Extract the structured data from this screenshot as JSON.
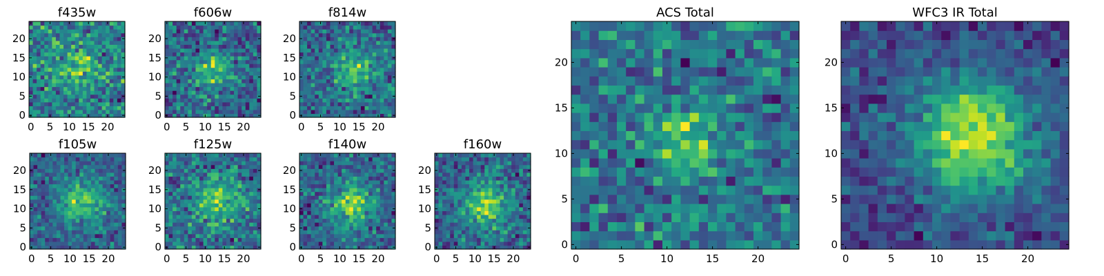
{
  "figure": {
    "background": "#ffffff"
  },
  "chart_data": [
    {
      "type": "heatmap",
      "title": "f435w",
      "xlim": [
        0,
        25
      ],
      "ylim": [
        0,
        25
      ],
      "xticks": [
        0,
        5,
        10,
        15,
        20
      ],
      "yticks": [
        0,
        5,
        10,
        15,
        20
      ],
      "peak": [
        12,
        12
      ],
      "sigma": 3.5,
      "amp": 0.3,
      "noise": 0.55,
      "seed": 11
    },
    {
      "type": "heatmap",
      "title": "f606w",
      "xlim": [
        0,
        25
      ],
      "ylim": [
        0,
        25
      ],
      "xticks": [
        0,
        5,
        10,
        15,
        20
      ],
      "yticks": [
        0,
        5,
        10,
        15,
        20
      ],
      "peak": [
        12,
        12
      ],
      "sigma": 3.5,
      "amp": 0.35,
      "noise": 0.55,
      "seed": 23
    },
    {
      "type": "heatmap",
      "title": "f814w",
      "xlim": [
        0,
        25
      ],
      "ylim": [
        0,
        25
      ],
      "xticks": [
        0,
        5,
        10,
        15,
        20
      ],
      "yticks": [
        0,
        5,
        10,
        15,
        20
      ],
      "peak": [
        14,
        12
      ],
      "sigma": 3.5,
      "amp": 0.4,
      "noise": 0.55,
      "seed": 37
    },
    {
      "type": "heatmap",
      "title": "f105w",
      "xlim": [
        0,
        25
      ],
      "ylim": [
        0,
        25
      ],
      "xticks": [
        0,
        5,
        10,
        15,
        20
      ],
      "yticks": [
        0,
        5,
        10,
        15,
        20
      ],
      "peak": [
        13,
        12
      ],
      "sigma": 4,
      "amp": 0.45,
      "noise": 0.45,
      "seed": 41
    },
    {
      "type": "heatmap",
      "title": "f125w",
      "xlim": [
        0,
        25
      ],
      "ylim": [
        0,
        25
      ],
      "xticks": [
        0,
        5,
        10,
        15,
        20
      ],
      "yticks": [
        0,
        5,
        10,
        15,
        20
      ],
      "peak": [
        13,
        12
      ],
      "sigma": 4,
      "amp": 0.35,
      "noise": 0.5,
      "seed": 53
    },
    {
      "type": "heatmap",
      "title": "f140w",
      "xlim": [
        0,
        25
      ],
      "ylim": [
        0,
        25
      ],
      "xticks": [
        0,
        5,
        10,
        15,
        20
      ],
      "yticks": [
        0,
        5,
        10,
        15,
        20
      ],
      "peak": [
        13,
        11
      ],
      "sigma": 4,
      "amp": 0.45,
      "noise": 0.45,
      "seed": 67
    },
    {
      "type": "heatmap",
      "title": "f160w",
      "xlim": [
        0,
        25
      ],
      "ylim": [
        0,
        25
      ],
      "xticks": [
        0,
        5,
        10,
        15,
        20
      ],
      "yticks": [
        0,
        5,
        10,
        15,
        20
      ],
      "peak": [
        13,
        11
      ],
      "sigma": 4,
      "amp": 0.45,
      "noise": 0.45,
      "seed": 79
    },
    {
      "type": "heatmap",
      "title": "ACS Total",
      "xlim": [
        0,
        25
      ],
      "ylim": [
        0,
        25
      ],
      "xticks": [
        0,
        5,
        10,
        15,
        20
      ],
      "yticks": [
        0,
        5,
        10,
        15,
        20
      ],
      "peak": [
        12,
        11
      ],
      "sigma": 2.5,
      "amp": 0.35,
      "noise": 0.45,
      "seed": 97
    },
    {
      "type": "heatmap",
      "title": "WFC3 IR Total",
      "xlim": [
        0,
        25
      ],
      "ylim": [
        0,
        25
      ],
      "xticks": [
        0,
        5,
        10,
        15,
        20
      ],
      "yticks": [
        0,
        5,
        10,
        15,
        20
      ],
      "peak": [
        14,
        12
      ],
      "sigma": 4.5,
      "amp": 0.6,
      "noise": 0.3,
      "seed": 131
    }
  ]
}
